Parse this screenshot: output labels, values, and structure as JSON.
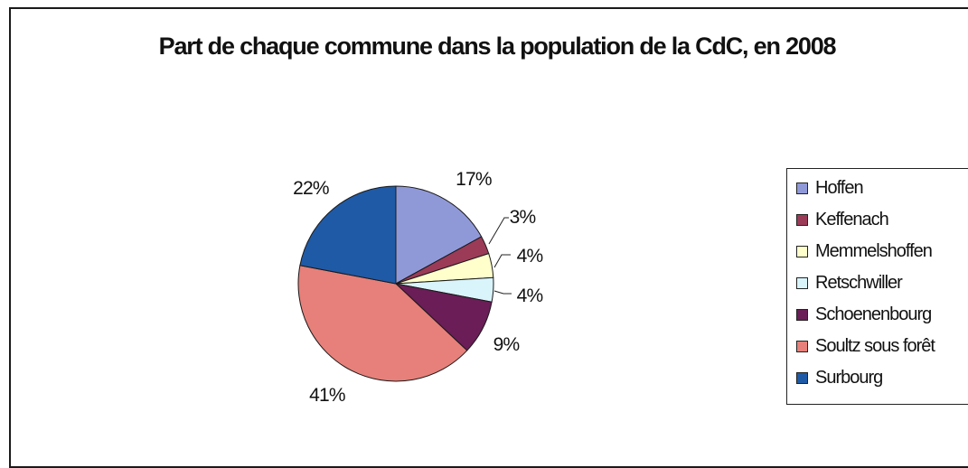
{
  "chart_data": {
    "type": "pie",
    "title": "Part de chaque commune  dans la population de la CdC, en 2008",
    "categories": [
      "Hoffen",
      "Keffenach",
      "Memmelshoffen",
      "Retschwiller",
      "Schoenenbourg",
      "Soultz sous forêt",
      "Surbourg"
    ],
    "values": [
      17,
      3,
      4,
      4,
      9,
      41,
      22
    ],
    "labels": [
      "17%",
      "3%",
      "4%",
      "4%",
      "9%",
      "41%",
      "22%"
    ],
    "colors": [
      "#9099d8",
      "#9b3b58",
      "#ffffcc",
      "#d9f4fb",
      "#6a1d56",
      "#e7807a",
      "#1f5aa6"
    ],
    "legend_position": "right"
  }
}
